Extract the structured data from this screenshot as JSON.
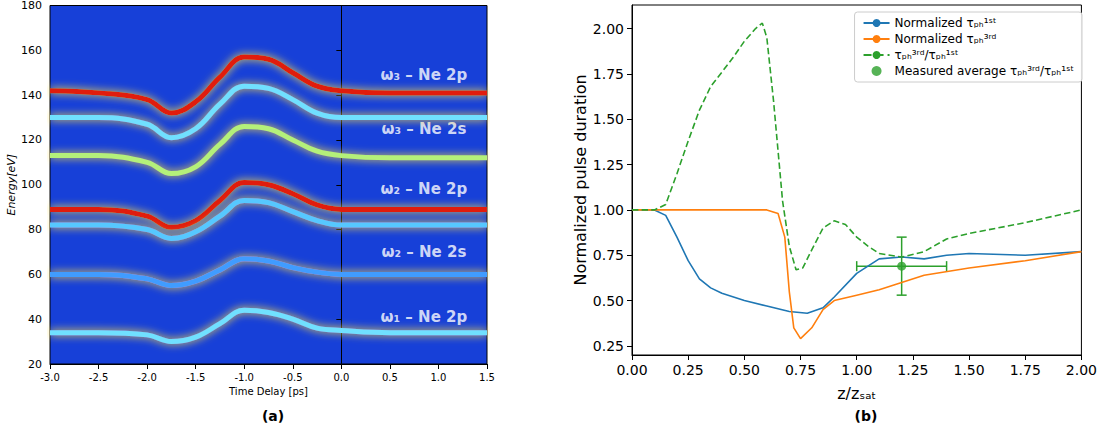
{
  "chart_data": [
    {
      "type": "line",
      "title": "(a)",
      "x_label": "Time Delay [ps]",
      "y_label": "Energy[eV]",
      "x": [
        -3,
        -2.5,
        -2,
        -1.75,
        -1.5,
        -1.25,
        -1,
        -0.75,
        -0.5,
        -0.25,
        0,
        0.5,
        1,
        1.5
      ],
      "xlim": [
        -3,
        1.5
      ],
      "xticks": [
        {
          "value": -3,
          "label": "-3.0"
        },
        -2.5,
        {
          "value": -2,
          "label": "-2.0"
        },
        -1.5,
        {
          "value": -1,
          "label": "-1.0"
        },
        -0.5,
        {
          "value": 0,
          "label": "0.0"
        },
        0.5,
        {
          "value": 1,
          "label": "1.0"
        },
        1.5
      ],
      "ylim": [
        20,
        180
      ],
      "yticks": [
        20,
        40,
        60,
        80,
        100,
        120,
        140,
        160,
        180
      ],
      "grid": false,
      "series": [
        {
          "color": "#e01a0e",
          "values": [
            142,
            141,
            138,
            132,
            137,
            148,
            157,
            156,
            150,
            144,
            142,
            141,
            141,
            141
          ]
        },
        {
          "color": "#6fe0ff",
          "values": [
            130,
            130,
            127,
            121,
            125,
            136,
            144,
            143,
            138,
            132,
            130,
            130,
            130,
            130
          ]
        },
        {
          "color": "#b4f07a",
          "values": [
            113,
            113,
            110,
            105,
            108,
            118,
            126,
            125,
            120,
            115,
            113,
            112,
            112,
            112
          ]
        },
        {
          "color": "#e01a0e",
          "values": [
            89,
            89,
            86,
            81,
            84,
            93,
            101,
            100,
            96,
            91,
            89,
            89,
            89,
            89
          ]
        },
        {
          "color": "#56c8ff",
          "values": [
            82,
            82,
            80,
            76,
            79,
            86,
            93,
            92,
            88,
            84,
            82,
            82,
            82,
            82
          ]
        },
        {
          "color": "#3f9cff",
          "values": [
            60,
            60,
            58,
            55,
            57,
            62,
            67,
            66,
            63,
            61,
            60,
            60,
            60,
            60
          ]
        },
        {
          "color": "#6fe0ff",
          "values": [
            34,
            34,
            33,
            30,
            32,
            38,
            44,
            43,
            40,
            36,
            35,
            34,
            34,
            34
          ]
        }
      ],
      "annotations": [
        {
          "text": "ω₃ – Ne 2p",
          "x": 0.85,
          "y": 149
        },
        {
          "text": "ω₃ – Ne 2s",
          "x": 0.85,
          "y": 125
        },
        {
          "text": "ω₂ – Ne 2p",
          "x": 0.85,
          "y": 98
        },
        {
          "text": "ω₂ – Ne 2s",
          "x": 0.85,
          "y": 70
        },
        {
          "text": "ω₁ – Ne 2p",
          "x": 0.85,
          "y": 41
        }
      ]
    },
    {
      "type": "line",
      "title": "(b)",
      "x_label": "z/zₛₐₜ",
      "y_label": "Normalized pulse duration",
      "xlim": [
        0,
        2
      ],
      "xticks": [
        {
          "value": 0,
          "label": "0.00"
        },
        0.25,
        {
          "value": 0.5,
          "label": "0.50"
        },
        0.75,
        {
          "value": 1,
          "label": "1.00"
        },
        1.25,
        {
          "value": 1.5,
          "label": "1.50"
        },
        1.75,
        {
          "value": 2,
          "label": "2.00"
        }
      ],
      "ylim": [
        0.2,
        2.13
      ],
      "yticks": [
        0.25,
        {
          "value": 0.5,
          "label": "0.50"
        },
        0.75,
        {
          "value": 1,
          "label": "1.00"
        },
        1.25,
        {
          "value": 1.5,
          "label": "1.50"
        },
        1.75,
        {
          "value": 2,
          "label": "2.00"
        }
      ],
      "grid": false,
      "legend": "upper right",
      "series": [
        {
          "name": "Normalized τₚₕ¹ˢᵗ",
          "color": "#1f77b4",
          "line_style": "solid",
          "x": [
            0,
            0.1,
            0.15,
            0.2,
            0.25,
            0.3,
            0.35,
            0.4,
            0.5,
            0.6,
            0.7,
            0.78,
            0.85,
            0.9,
            1.0,
            1.1,
            1.2,
            1.3,
            1.4,
            1.5,
            1.75,
            2.0
          ],
          "values": [
            1,
            1,
            0.97,
            0.85,
            0.72,
            0.62,
            0.57,
            0.54,
            0.5,
            0.47,
            0.44,
            0.43,
            0.46,
            0.52,
            0.65,
            0.73,
            0.74,
            0.73,
            0.75,
            0.76,
            0.75,
            0.77
          ]
        },
        {
          "name": "Normalized τₚₕ³ʳᵈ",
          "color": "#ff7f0e",
          "line_style": "solid",
          "x": [
            0,
            0.6,
            0.65,
            0.68,
            0.7,
            0.72,
            0.75,
            0.8,
            0.85,
            0.9,
            1.0,
            1.1,
            1.2,
            1.3,
            1.5,
            1.75,
            2.0
          ],
          "values": [
            1,
            1,
            0.98,
            0.85,
            0.55,
            0.35,
            0.29,
            0.35,
            0.45,
            0.5,
            0.53,
            0.56,
            0.6,
            0.64,
            0.68,
            0.72,
            0.77
          ]
        },
        {
          "name": "τₚₕ³ʳᵈ/τₚₕ¹ˢᵗ",
          "color": "#2ca02c",
          "line_style": "dashed",
          "x": [
            0,
            0.1,
            0.15,
            0.2,
            0.25,
            0.3,
            0.35,
            0.4,
            0.45,
            0.5,
            0.55,
            0.58,
            0.6,
            0.63,
            0.67,
            0.7,
            0.73,
            0.76,
            0.8,
            0.85,
            0.9,
            0.95,
            1.0,
            1.05,
            1.1,
            1.2,
            1.3,
            1.4,
            1.5,
            1.75,
            2.0
          ],
          "values": [
            1,
            1,
            1.03,
            1.2,
            1.38,
            1.55,
            1.68,
            1.76,
            1.84,
            1.93,
            2.0,
            2.03,
            1.95,
            1.6,
            1.05,
            0.8,
            0.67,
            0.68,
            0.78,
            0.9,
            0.94,
            0.92,
            0.85,
            0.8,
            0.76,
            0.74,
            0.77,
            0.84,
            0.87,
            0.93,
            1.0
          ]
        },
        {
          "name": "Measured average τₚₕ³ʳᵈ/τₚₕ¹ˢᵗ",
          "type": "scatter",
          "color": "#2ca02c",
          "marker": "circle",
          "x": [
            1.2
          ],
          "values": [
            0.69
          ],
          "x_error": [
            0.2
          ],
          "y_error": [
            0.16
          ]
        }
      ]
    }
  ]
}
